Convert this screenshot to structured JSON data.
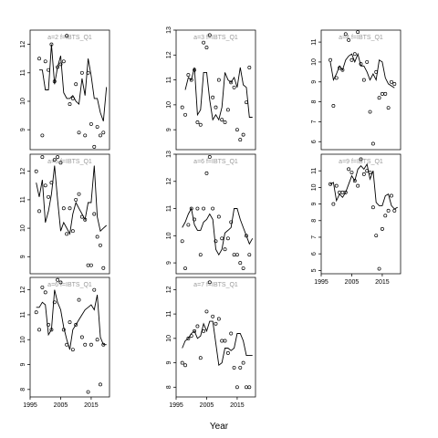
{
  "figure": {
    "xlabel": "Year"
  },
  "chart_data": [
    {
      "type": "scatter",
      "title": "a=2  f=IBTS_Q1",
      "col": 0,
      "row": 0,
      "show_x": false,
      "ylim": [
        8.3,
        12.5
      ],
      "yticks": [
        9,
        10,
        11,
        12
      ],
      "xlim": [
        1995,
        2021
      ],
      "xticks": [
        1995,
        2005,
        2015
      ],
      "series": [
        {
          "kind": "points",
          "x": [
            1998,
            1999,
            2000,
            2001,
            2002,
            2003,
            2004,
            2005,
            2006,
            2007,
            2008,
            2009,
            2010,
            2011,
            2012,
            2013,
            2014,
            2015,
            2016,
            2017,
            2018,
            2019
          ],
          "y": [
            11.5,
            8.8,
            11.4,
            11.1,
            12.0,
            10.7,
            11.2,
            11.3,
            11.4,
            12.3,
            9.9,
            10.1,
            10.6,
            8.9,
            11.0,
            8.8,
            11.0,
            9.2,
            8.4,
            9.1,
            8.8,
            8.9
          ]
        },
        {
          "kind": "line",
          "x": [
            1998,
            1999,
            2000,
            2001,
            2002,
            2003,
            2004,
            2005,
            2006,
            2007,
            2008,
            2009,
            2010,
            2011,
            2012,
            2013,
            2014,
            2015,
            2016,
            2017,
            2018,
            2019,
            2020
          ],
          "y": [
            11.1,
            11.1,
            10.4,
            10.4,
            12.0,
            10.6,
            11.2,
            11.6,
            10.3,
            10.1,
            10.1,
            10.2,
            10.0,
            9.9,
            10.8,
            10.2,
            11.5,
            10.9,
            10.1,
            10.1,
            9.6,
            9.3,
            10.5
          ]
        }
      ]
    },
    {
      "type": "scatter",
      "title": "a=3  f=IBTS_Q1",
      "col": 1,
      "row": 0,
      "show_x": false,
      "ylim": [
        8.2,
        13.0
      ],
      "yticks": [
        9,
        10,
        11,
        12,
        13
      ],
      "xlim": [
        1995,
        2021
      ],
      "xticks": [
        1995,
        2005,
        2015
      ],
      "series": [
        {
          "kind": "points",
          "x": [
            1997,
            1998,
            1999,
            2000,
            2001,
            2002,
            2003,
            2004,
            2005,
            2006,
            2007,
            2008,
            2009,
            2010,
            2011,
            2012,
            2013,
            2014,
            2015,
            2016,
            2017,
            2018,
            2019
          ],
          "y": [
            9.9,
            9.6,
            11.2,
            11.0,
            11.4,
            9.3,
            9.2,
            12.5,
            12.3,
            12.8,
            10.3,
            9.9,
            11.0,
            9.4,
            9.3,
            9.8,
            10.9,
            10.7,
            9.0,
            8.6,
            8.8,
            10.1,
            11.5
          ]
        },
        {
          "kind": "line",
          "x": [
            1998,
            1999,
            2000,
            2001,
            2002,
            2003,
            2004,
            2005,
            2006,
            2007,
            2008,
            2009,
            2010,
            2011,
            2012,
            2013,
            2014,
            2015,
            2016,
            2017,
            2018,
            2019,
            2020
          ],
          "y": [
            10.6,
            11.1,
            11.0,
            11.5,
            9.6,
            9.8,
            11.3,
            11.3,
            10.2,
            9.4,
            9.6,
            9.4,
            9.9,
            11.3,
            11.0,
            10.9,
            11.1,
            10.7,
            11.5,
            10.8,
            10.7,
            9.5,
            9.5
          ]
        }
      ]
    },
    {
      "type": "scatter",
      "title": "a=4  f=IBTS_Q1",
      "col": 2,
      "row": 0,
      "show_x": false,
      "ylim": [
        5.6,
        11.6
      ],
      "yticks": [
        6,
        7,
        8,
        9,
        10,
        11
      ],
      "xlim": [
        1995,
        2021
      ],
      "xticks": [
        1995,
        2005,
        2015
      ],
      "series": [
        {
          "kind": "points",
          "x": [
            1998,
            1999,
            2000,
            2001,
            2002,
            2003,
            2004,
            2005,
            2006,
            2007,
            2008,
            2009,
            2010,
            2011,
            2012,
            2013,
            2014,
            2015,
            2016,
            2017,
            2018,
            2019
          ],
          "y": [
            10.1,
            7.8,
            9.2,
            9.7,
            9.6,
            11.4,
            11.1,
            10.1,
            10.4,
            11.5,
            9.9,
            9.1,
            10.0,
            7.5,
            5.9,
            9.5,
            8.2,
            8.4,
            8.4,
            7.7,
            9.0,
            8.9
          ]
        },
        {
          "kind": "line",
          "x": [
            1998,
            1999,
            2000,
            2001,
            2002,
            2003,
            2004,
            2005,
            2006,
            2007,
            2008,
            2009,
            2010,
            2011,
            2012,
            2013,
            2014,
            2015,
            2016,
            2017,
            2018,
            2019
          ],
          "y": [
            10.0,
            9.1,
            9.4,
            9.8,
            9.6,
            10.1,
            10.3,
            10.4,
            10.0,
            10.4,
            9.8,
            9.8,
            9.5,
            9.1,
            9.4,
            9.1,
            10.1,
            10.0,
            9.2,
            8.9,
            8.8,
            8.7
          ]
        }
      ]
    },
    {
      "type": "scatter",
      "title": "a=5  f=IBTS_Q1",
      "col": 0,
      "row": 1,
      "show_x": false,
      "ylim": [
        8.4,
        12.6
      ],
      "yticks": [
        9,
        10,
        11,
        12
      ],
      "xlim": [
        1995,
        2021
      ],
      "xticks": [
        1995,
        2005,
        2015
      ],
      "series": [
        {
          "kind": "points",
          "x": [
            1997,
            1998,
            1999,
            2000,
            2001,
            2002,
            2003,
            2004,
            2005,
            2006,
            2007,
            2008,
            2009,
            2010,
            2011,
            2012,
            2013,
            2014,
            2015,
            2016,
            2017,
            2018,
            2019
          ],
          "y": [
            12.0,
            10.6,
            12.5,
            11.5,
            11.1,
            11.6,
            12.4,
            12.5,
            12.3,
            10.7,
            9.8,
            10.7,
            9.9,
            11.0,
            11.2,
            10.4,
            10.3,
            8.7,
            8.7,
            10.5,
            9.7,
            9.4,
            8.6
          ]
        },
        {
          "kind": "line",
          "x": [
            1997,
            1998,
            1999,
            2000,
            2001,
            2002,
            2003,
            2004,
            2005,
            2006,
            2007,
            2008,
            2009,
            2010,
            2011,
            2012,
            2013,
            2014,
            2015,
            2016,
            2017,
            2018,
            2019,
            2020
          ],
          "y": [
            11.6,
            11.1,
            11.7,
            10.2,
            10.6,
            11.2,
            12.2,
            11.0,
            9.9,
            10.2,
            10.0,
            9.8,
            10.5,
            10.9,
            10.7,
            10.5,
            10.3,
            10.9,
            10.9,
            12.2,
            10.4,
            9.9,
            10.0,
            10.1
          ]
        }
      ]
    },
    {
      "type": "scatter",
      "title": "a=6  f=IBTS_Q1",
      "col": 1,
      "row": 1,
      "show_x": false,
      "ylim": [
        8.6,
        13.0
      ],
      "yticks": [
        9,
        10,
        11,
        12,
        13
      ],
      "xlim": [
        1995,
        2021
      ],
      "xticks": [
        1995,
        2005,
        2015
      ],
      "series": [
        {
          "kind": "points",
          "x": [
            1997,
            1998,
            1999,
            2000,
            2001,
            2002,
            2003,
            2004,
            2005,
            2006,
            2007,
            2008,
            2009,
            2010,
            2011,
            2012,
            2013,
            2014,
            2015,
            2016,
            2017,
            2018,
            2019
          ],
          "y": [
            9.8,
            8.8,
            10.4,
            11.0,
            10.6,
            11.0,
            9.3,
            11.0,
            12.3,
            12.9,
            11.0,
            9.8,
            10.7,
            9.9,
            9.5,
            9.9,
            10.5,
            9.3,
            9.3,
            9.0,
            8.8,
            10.0,
            9.3
          ]
        },
        {
          "kind": "line",
          "x": [
            1997,
            1998,
            1999,
            2000,
            2001,
            2002,
            2003,
            2004,
            2005,
            2006,
            2007,
            2008,
            2009,
            2010,
            2011,
            2012,
            2013,
            2014,
            2015,
            2016,
            2017,
            2018,
            2019,
            2020
          ],
          "y": [
            10.3,
            10.5,
            10.8,
            11.0,
            10.4,
            10.2,
            10.2,
            10.5,
            10.6,
            10.8,
            10.6,
            9.5,
            9.3,
            9.5,
            10.1,
            10.2,
            10.3,
            11.0,
            11.0,
            10.6,
            10.3,
            10.0,
            9.7,
            9.9
          ]
        }
      ]
    },
    {
      "type": "scatter",
      "title": "a=9  f=IBTS_Q1",
      "col": 2,
      "row": 1,
      "show_x": true,
      "ylim": [
        4.8,
        12.0
      ],
      "yticks": [
        5,
        6,
        7,
        8,
        9,
        10,
        11
      ],
      "xlim": [
        1995,
        2021
      ],
      "xticks": [
        1995,
        2005,
        2015
      ],
      "series": [
        {
          "kind": "points",
          "x": [
            1998,
            1999,
            2000,
            2001,
            2002,
            2003,
            2004,
            2005,
            2006,
            2007,
            2008,
            2009,
            2010,
            2011,
            2012,
            2013,
            2014,
            2015,
            2016,
            2017,
            2018,
            2019
          ],
          "y": [
            10.2,
            9.0,
            10.1,
            9.7,
            9.7,
            9.7,
            11.1,
            10.9,
            10.4,
            10.1,
            11.7,
            10.8,
            11.0,
            10.9,
            8.8,
            7.1,
            5.1,
            7.5,
            8.3,
            8.6,
            9.5,
            8.6
          ]
        },
        {
          "kind": "line",
          "x": [
            1998,
            1999,
            2000,
            2001,
            2002,
            2003,
            2004,
            2005,
            2006,
            2007,
            2008,
            2009,
            2010,
            2011,
            2012,
            2013,
            2014,
            2015,
            2016,
            2017,
            2018,
            2019,
            2020
          ],
          "y": [
            10.2,
            10.3,
            9.2,
            9.6,
            9.4,
            9.7,
            10.2,
            10.7,
            10.4,
            11.1,
            11.3,
            11.1,
            11.4,
            10.5,
            11.0,
            9.1,
            8.9,
            8.9,
            9.5,
            9.6,
            8.9,
            8.7,
            8.8
          ]
        }
      ]
    },
    {
      "type": "scatter",
      "title": "a=6  f=IBTS_Q1",
      "col": 0,
      "row": 2,
      "show_x": true,
      "ylim": [
        7.7,
        12.5
      ],
      "yticks": [
        8,
        9,
        10,
        11,
        12
      ],
      "xlim": [
        1995,
        2021
      ],
      "xticks": [
        1995,
        2005,
        2015
      ],
      "series": [
        {
          "kind": "points",
          "x": [
            1997,
            1998,
            1999,
            2000,
            2001,
            2002,
            2003,
            2004,
            2005,
            2006,
            2007,
            2008,
            2009,
            2010,
            2011,
            2012,
            2013,
            2014,
            2015,
            2016,
            2017,
            2018,
            2019
          ],
          "y": [
            11.1,
            10.4,
            12.1,
            11.9,
            10.6,
            10.4,
            11.5,
            12.4,
            12.3,
            10.4,
            9.8,
            10.7,
            9.6,
            10.6,
            11.6,
            10.1,
            9.8,
            7.9,
            9.8,
            12.0,
            10.0,
            8.2,
            9.8
          ]
        },
        {
          "kind": "line",
          "x": [
            1997,
            1998,
            1999,
            2000,
            2001,
            2002,
            2003,
            2004,
            2005,
            2006,
            2007,
            2008,
            2009,
            2010,
            2011,
            2012,
            2013,
            2014,
            2015,
            2016,
            2017,
            2018,
            2019,
            2020
          ],
          "y": [
            11.3,
            11.3,
            11.5,
            11.4,
            10.2,
            10.4,
            12.0,
            11.5,
            11.2,
            10.5,
            10.0,
            9.6,
            10.4,
            10.6,
            10.8,
            11.0,
            11.2,
            11.3,
            11.4,
            11.2,
            11.8,
            10.1,
            9.8,
            9.8
          ]
        }
      ]
    },
    {
      "type": "scatter",
      "title": "a=7  f=IBTS_Q1",
      "col": 1,
      "row": 2,
      "show_x": true,
      "ylim": [
        7.6,
        12.5
      ],
      "yticks": [
        8,
        9,
        10,
        11,
        12
      ],
      "xlim": [
        1995,
        2021
      ],
      "xticks": [
        1995,
        2005,
        2015
      ],
      "series": [
        {
          "kind": "points",
          "x": [
            1997,
            1998,
            1999,
            2000,
            2001,
            2002,
            2003,
            2004,
            2005,
            2006,
            2007,
            2008,
            2009,
            2010,
            2011,
            2012,
            2013,
            2014,
            2015,
            2016,
            2017,
            2018,
            2019
          ],
          "y": [
            9.0,
            8.9,
            10.0,
            10.1,
            10.3,
            10.5,
            9.2,
            10.3,
            11.1,
            12.3,
            10.9,
            10.6,
            10.8,
            9.9,
            9.9,
            9.4,
            10.2,
            8.8,
            8.0,
            8.8,
            9.0,
            8.0,
            8.0
          ]
        },
        {
          "kind": "line",
          "x": [
            1997,
            1998,
            1999,
            2000,
            2001,
            2002,
            2003,
            2004,
            2005,
            2006,
            2007,
            2008,
            2009,
            2010,
            2011,
            2012,
            2013,
            2014,
            2015,
            2016,
            2017,
            2018,
            2019,
            2020
          ],
          "y": [
            9.6,
            9.9,
            10.0,
            10.2,
            10.3,
            10.0,
            10.1,
            10.6,
            10.3,
            10.7,
            10.7,
            9.8,
            8.9,
            9.0,
            9.6,
            9.6,
            9.5,
            9.6,
            10.2,
            10.2,
            9.9,
            9.3,
            9.3,
            9.3
          ]
        }
      ]
    }
  ]
}
